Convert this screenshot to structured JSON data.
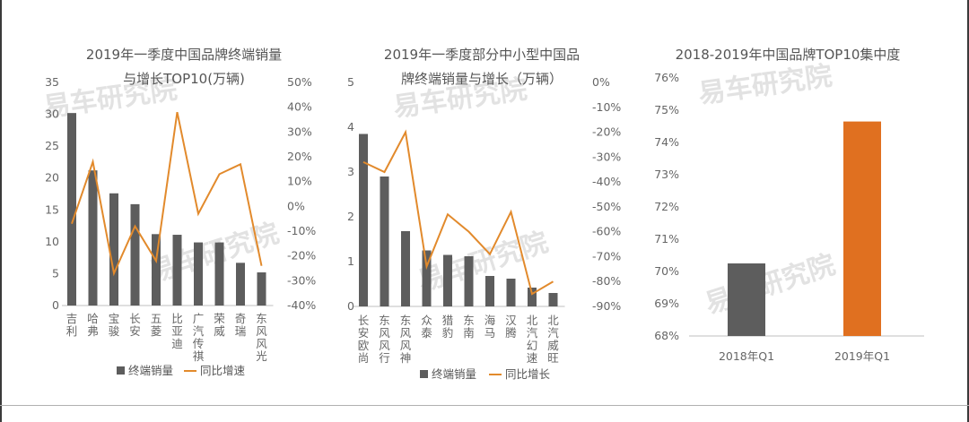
{
  "watermark": "易车研究院",
  "chart_data": [
    {
      "type": "bar",
      "title": "2019年一季度中国品牌终端销量与增长TOP10(万辆)",
      "title_lines": [
        "2019年一季度中国品牌终端销量",
        "与增长TOP10(万辆)"
      ],
      "categories": [
        "吉利",
        "哈弗",
        "宝骏",
        "长安",
        "五菱",
        "比亚迪",
        "广汽传祺",
        "荣威",
        "奇瑞",
        "东风风光"
      ],
      "series": [
        {
          "name": "终端销量",
          "kind": "bar",
          "axis": "left",
          "values": [
            30.2,
            21.2,
            17.6,
            15.9,
            11.2,
            11.1,
            9.9,
            9.9,
            6.7,
            5.2
          ]
        },
        {
          "name": "同比增速",
          "kind": "line",
          "axis": "right",
          "values": [
            -7,
            18,
            -27,
            -8,
            -22,
            38,
            -3,
            13,
            17,
            -24
          ]
        }
      ],
      "ylim_left": [
        0,
        35
      ],
      "yticks_left": [
        "0",
        "5",
        "10",
        "15",
        "20",
        "25",
        "30",
        "35"
      ],
      "ylim_right": [
        -40,
        50
      ],
      "yticks_right": [
        "-40%",
        "-30%",
        "-20%",
        "-10%",
        "0%",
        "10%",
        "20%",
        "30%",
        "40%",
        "50%"
      ],
      "legend": "bottom",
      "grid": false
    },
    {
      "type": "bar",
      "title": "2019年一季度部分中小型中国品牌终端销量与增长（万辆）",
      "title_lines": [
        "2019年一季度部分中小型中国品",
        "牌终端销量与增长（万辆）"
      ],
      "categories": [
        "长安欧尚",
        "东风风行",
        "东风风神",
        "众泰",
        "猎豹",
        "东南",
        "海马",
        "汉腾",
        "北汽幻速",
        "北汽威旺"
      ],
      "series": [
        {
          "name": "终端销量",
          "kind": "bar",
          "axis": "left",
          "values": [
            3.85,
            2.9,
            1.68,
            1.25,
            1.15,
            1.12,
            0.68,
            0.62,
            0.42,
            0.3
          ]
        },
        {
          "name": "同比增长",
          "kind": "line",
          "axis": "right",
          "values": [
            -32,
            -36,
            -20,
            -74,
            -53,
            -60,
            -69,
            -52,
            -85,
            -80
          ]
        }
      ],
      "ylim_left": [
        0,
        5
      ],
      "yticks_left": [
        "0",
        "1",
        "2",
        "3",
        "4",
        "5"
      ],
      "ylim_right": [
        -90,
        0
      ],
      "yticks_right": [
        "-90%",
        "-80%",
        "-70%",
        "-60%",
        "-50%",
        "-40%",
        "-30%",
        "-20%",
        "-10%",
        "0%"
      ],
      "legend": "bottom",
      "grid": false
    },
    {
      "type": "bar",
      "title": "2018-2019年中国品牌TOP10集中度",
      "categories": [
        "2018年Q1",
        "2019年Q1"
      ],
      "values": [
        70.25,
        74.65
      ],
      "colors": [
        "#5d5d5d",
        "#e07020"
      ],
      "ylim": [
        68,
        76
      ],
      "yticks": [
        "68%",
        "69%",
        "70%",
        "71%",
        "72%",
        "73%",
        "74%",
        "75%",
        "76%"
      ],
      "grid": false
    }
  ],
  "colors": {
    "bar": "#5d5d5d",
    "line": "#e28a2c",
    "orange_bar": "#e07020"
  }
}
